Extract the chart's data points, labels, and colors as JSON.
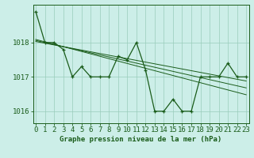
{
  "title": "Graphe pression niveau de la mer (hPa)",
  "background_color": "#cceee8",
  "grid_color": "#99ccbb",
  "line_color": "#1a5c1a",
  "x_values": [
    0,
    1,
    2,
    3,
    4,
    5,
    6,
    7,
    8,
    9,
    10,
    11,
    12,
    13,
    14,
    15,
    16,
    17,
    18,
    19,
    20,
    21,
    22,
    23
  ],
  "y_main": [
    1018.9,
    1018.0,
    1018.0,
    1017.8,
    1017.0,
    1017.3,
    1017.0,
    1017.0,
    1017.0,
    1017.6,
    1017.5,
    1018.0,
    1017.2,
    1016.0,
    1016.0,
    1016.35,
    1016.0,
    1016.0,
    1017.0,
    1017.0,
    1017.0,
    1017.4,
    1017.0,
    1017.0
  ],
  "y_trend1": [
    1018.03,
    1017.98,
    1017.93,
    1017.88,
    1017.83,
    1017.78,
    1017.73,
    1017.68,
    1017.63,
    1017.58,
    1017.53,
    1017.48,
    1017.43,
    1017.38,
    1017.33,
    1017.28,
    1017.23,
    1017.18,
    1017.13,
    1017.08,
    1017.03,
    1016.98,
    1016.93,
    1016.88
  ],
  "y_trend2": [
    1018.06,
    1018.0,
    1017.94,
    1017.88,
    1017.82,
    1017.76,
    1017.7,
    1017.64,
    1017.58,
    1017.52,
    1017.46,
    1017.4,
    1017.34,
    1017.28,
    1017.22,
    1017.16,
    1017.1,
    1017.04,
    1016.98,
    1016.92,
    1016.86,
    1016.8,
    1016.74,
    1016.68
  ],
  "y_trend3": [
    1018.09,
    1018.02,
    1017.95,
    1017.88,
    1017.81,
    1017.74,
    1017.67,
    1017.6,
    1017.53,
    1017.46,
    1017.39,
    1017.32,
    1017.25,
    1017.18,
    1017.11,
    1017.04,
    1016.97,
    1016.9,
    1016.83,
    1016.76,
    1016.69,
    1016.62,
    1016.55,
    1016.48
  ],
  "ylim": [
    1015.65,
    1019.1
  ],
  "yticks": [
    1016,
    1017,
    1018
  ],
  "tick_fontsize": 6.5,
  "title_fontsize": 6.5
}
